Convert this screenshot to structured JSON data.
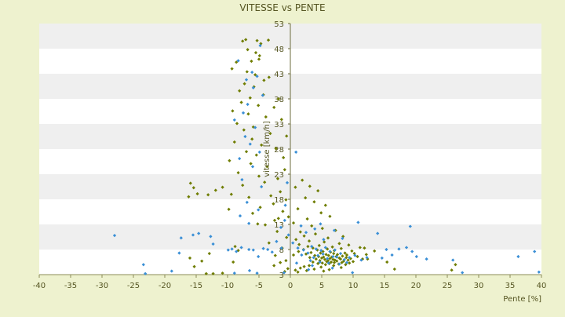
{
  "chart_data": {
    "type": "scatter",
    "title": "VITESSE vs PENTE",
    "xlabel": "Pente [%]",
    "ylabel": "vitesse [km/h]",
    "xlim": [
      -40,
      40
    ],
    "ylim": [
      3,
      53
    ],
    "x_ticks": [
      -40,
      -35,
      -30,
      -25,
      -20,
      -15,
      -10,
      -5,
      0,
      5,
      10,
      15,
      20,
      25,
      30,
      35,
      40
    ],
    "y_ticks": [
      3,
      8,
      13,
      18,
      23,
      28,
      33,
      38,
      43,
      48,
      53
    ],
    "grid": "horizontal bands",
    "colors": {
      "background": "#eef2cf",
      "plot_band_light": "#ffffff",
      "plot_band_dark": "#efefef",
      "text": "#555522",
      "series_a": "#6f7d00",
      "series_b": "#3a8fd6"
    },
    "series": [
      {
        "color": "#6f7d00",
        "points": [
          [
            -7.6,
            49.5
          ],
          [
            -7.1,
            49.8
          ],
          [
            -5.3,
            49.6
          ],
          [
            -4.7,
            49.0
          ],
          [
            -3.5,
            49.7
          ],
          [
            -6.8,
            47.8
          ],
          [
            -5.5,
            47.2
          ],
          [
            -4.9,
            46.6
          ],
          [
            -6.2,
            45.5
          ],
          [
            -5.0,
            45.9
          ],
          [
            -8.6,
            45.3
          ],
          [
            -9.3,
            44.0
          ],
          [
            -6.9,
            43.4
          ],
          [
            -5.6,
            42.8
          ],
          [
            -3.4,
            42.3
          ],
          [
            -4.2,
            41.7
          ],
          [
            -7.3,
            41.0
          ],
          [
            -5.8,
            40.4
          ],
          [
            -8.1,
            39.6
          ],
          [
            -4.3,
            38.8
          ],
          [
            -6.4,
            38.2
          ],
          [
            -1.9,
            38.0
          ],
          [
            -7.8,
            37.3
          ],
          [
            -5.1,
            36.7
          ],
          [
            -2.6,
            36.3
          ],
          [
            -9.2,
            35.6
          ],
          [
            -6.7,
            35.0
          ],
          [
            -3.9,
            34.4
          ],
          [
            -1.4,
            33.9
          ],
          [
            -8.5,
            33.1
          ],
          [
            -5.9,
            32.4
          ],
          [
            -7.4,
            31.8
          ],
          [
            -3.2,
            31.1
          ],
          [
            -0.6,
            30.6
          ],
          [
            -6.1,
            30.0
          ],
          [
            -8.9,
            29.4
          ],
          [
            -4.6,
            28.8
          ],
          [
            -2.3,
            28.1
          ],
          [
            -7.0,
            27.5
          ],
          [
            -5.4,
            26.8
          ],
          [
            -1.1,
            26.3
          ],
          [
            -9.7,
            25.7
          ],
          [
            -6.3,
            25.1
          ],
          [
            -3.7,
            24.5
          ],
          [
            -0.9,
            23.9
          ],
          [
            -8.3,
            23.3
          ],
          [
            -5.0,
            22.6
          ],
          [
            -2.0,
            22.1
          ],
          [
            -4.1,
            21.4
          ],
          [
            -7.6,
            20.8
          ],
          [
            -15.9,
            21.2
          ],
          [
            -15.4,
            20.3
          ],
          [
            -14.8,
            19.1
          ],
          [
            -13.1,
            18.9
          ],
          [
            -16.2,
            18.5
          ],
          [
            -11.9,
            19.8
          ],
          [
            -10.8,
            20.4
          ],
          [
            -9.4,
            19.0
          ],
          [
            -6.6,
            18.4
          ],
          [
            -3.1,
            18.7
          ],
          [
            -1.6,
            19.5
          ],
          [
            -0.7,
            17.9
          ],
          [
            -2.7,
            17.1
          ],
          [
            -4.8,
            16.4
          ],
          [
            -9.8,
            16.0
          ],
          [
            -6.0,
            15.2
          ],
          [
            -1.2,
            15.6
          ],
          [
            -0.3,
            14.5
          ],
          [
            -2.5,
            13.8
          ],
          [
            -5.2,
            13.1
          ],
          [
            0.8,
            20.4
          ],
          [
            1.9,
            21.8
          ],
          [
            3.1,
            20.6
          ],
          [
            4.4,
            19.7
          ],
          [
            2.4,
            18.3
          ],
          [
            3.8,
            17.5
          ],
          [
            5.6,
            16.8
          ],
          [
            1.2,
            16.1
          ],
          [
            4.9,
            15.3
          ],
          [
            6.3,
            14.6
          ],
          [
            2.7,
            14.1
          ],
          [
            0.5,
            13.3
          ],
          [
            3.4,
            12.7
          ],
          [
            5.1,
            12.2
          ],
          [
            7.2,
            11.8
          ],
          [
            1.6,
            11.5
          ],
          [
            4.0,
            11.1
          ],
          [
            2.2,
            10.7
          ],
          [
            6.0,
            10.3
          ],
          [
            8.4,
            10.6
          ],
          [
            0.9,
            10.0
          ],
          [
            3.0,
            9.7
          ],
          [
            5.4,
            9.5
          ],
          [
            7.8,
            9.2
          ],
          [
            1.4,
            9.0
          ],
          [
            4.6,
            8.8
          ],
          [
            9.3,
            8.9
          ],
          [
            2.8,
            8.6
          ],
          [
            6.7,
            8.5
          ],
          [
            11.1,
            8.4
          ],
          [
            3.6,
            8.3
          ],
          [
            5.9,
            8.1
          ],
          [
            8.1,
            8.2
          ],
          [
            2.1,
            8.0
          ],
          [
            4.3,
            7.9
          ],
          [
            7.0,
            7.8
          ],
          [
            9.8,
            7.7
          ],
          [
            1.3,
            7.6
          ],
          [
            5.2,
            7.6
          ],
          [
            6.4,
            7.5
          ],
          [
            3.3,
            7.4
          ],
          [
            8.7,
            7.3
          ],
          [
            4.8,
            7.3
          ],
          [
            6.9,
            7.2
          ],
          [
            10.2,
            7.2
          ],
          [
            2.5,
            7.1
          ],
          [
            5.7,
            7.0
          ],
          [
            7.5,
            7.0
          ],
          [
            9.0,
            6.9
          ],
          [
            12.1,
            7.0
          ],
          [
            3.9,
            6.8
          ],
          [
            6.1,
            6.8
          ],
          [
            8.3,
            6.7
          ],
          [
            4.5,
            6.6
          ],
          [
            7.3,
            6.6
          ],
          [
            10.7,
            6.6
          ],
          [
            5.3,
            6.5
          ],
          [
            6.6,
            6.5
          ],
          [
            8.9,
            6.4
          ],
          [
            3.1,
            6.4
          ],
          [
            7.8,
            6.3
          ],
          [
            5.0,
            6.3
          ],
          [
            9.6,
            6.2
          ],
          [
            6.3,
            6.2
          ],
          [
            4.1,
            6.1
          ],
          [
            8.0,
            6.1
          ],
          [
            11.5,
            6.1
          ],
          [
            6.8,
            6.0
          ],
          [
            5.5,
            6.0
          ],
          [
            7.1,
            5.9
          ],
          [
            9.2,
            5.9
          ],
          [
            4.7,
            5.8
          ],
          [
            6.0,
            5.8
          ],
          [
            8.5,
            5.7
          ],
          [
            7.4,
            5.7
          ],
          [
            5.8,
            5.6
          ],
          [
            10.0,
            5.6
          ],
          [
            6.5,
            5.5
          ],
          [
            3.6,
            5.5
          ],
          [
            8.2,
            5.4
          ],
          [
            7.0,
            5.4
          ],
          [
            5.1,
            5.3
          ],
          [
            9.4,
            5.3
          ],
          [
            6.2,
            5.2
          ],
          [
            4.4,
            5.2
          ],
          [
            7.7,
            5.1
          ],
          [
            8.8,
            5.0
          ],
          [
            5.6,
            5.0
          ],
          [
            3.0,
            4.8
          ],
          [
            6.9,
            4.8
          ],
          [
            2.2,
            4.6
          ],
          [
            4.9,
            4.5
          ],
          [
            8.1,
            4.4
          ],
          [
            1.6,
            4.3
          ],
          [
            3.8,
            4.1
          ],
          [
            6.2,
            4.0
          ],
          [
            0.8,
            3.9
          ],
          [
            2.6,
            3.8
          ],
          [
            5.3,
            3.7
          ],
          [
            1.2,
            3.5
          ],
          [
            -0.4,
            4.2
          ],
          [
            -0.9,
            3.6
          ],
          [
            -1.6,
            5.4
          ],
          [
            -2.4,
            6.8
          ],
          [
            -1.3,
            8.3
          ],
          [
            -0.6,
            10.4
          ],
          [
            -3.4,
            9.3
          ],
          [
            -2.1,
            11.6
          ],
          [
            -4.0,
            12.9
          ],
          [
            -1.9,
            14.2
          ],
          [
            -10.8,
            3.3
          ],
          [
            -12.3,
            3.2
          ],
          [
            -13.4,
            3.2
          ],
          [
            -9.1,
            5.5
          ],
          [
            -8.3,
            7.8
          ],
          [
            -15.3,
            4.6
          ],
          [
            -14.1,
            5.7
          ],
          [
            -12.9,
            7.2
          ],
          [
            -16.0,
            6.3
          ],
          [
            -8.8,
            8.6
          ],
          [
            16.6,
            4.1
          ],
          [
            15.4,
            5.5
          ],
          [
            12.3,
            6.1
          ],
          [
            13.4,
            7.7
          ],
          [
            11.8,
            8.3
          ],
          [
            25.7,
            3.9
          ],
          [
            26.3,
            5.0
          ],
          [
            -2.6,
            4.8
          ],
          [
            -0.7,
            5.8
          ],
          [
            0.5,
            6.9
          ]
        ]
      },
      {
        "color": "#3a8fd6",
        "points": [
          [
            -4.8,
            48.6
          ],
          [
            -8.3,
            45.6
          ],
          [
            -6.1,
            43.3
          ],
          [
            -5.3,
            42.5
          ],
          [
            -7.0,
            41.8
          ],
          [
            -5.9,
            40.2
          ],
          [
            -4.4,
            38.7
          ],
          [
            -6.8,
            36.9
          ],
          [
            -7.5,
            35.2
          ],
          [
            -8.9,
            33.8
          ],
          [
            -5.6,
            32.3
          ],
          [
            -7.2,
            30.5
          ],
          [
            -6.4,
            29.0
          ],
          [
            -4.9,
            27.4
          ],
          [
            -8.1,
            26.1
          ],
          [
            -6.0,
            24.5
          ],
          [
            -7.7,
            21.9
          ],
          [
            -4.6,
            20.5
          ],
          [
            -6.9,
            17.4
          ],
          [
            -5.1,
            15.9
          ],
          [
            -8.0,
            14.7
          ],
          [
            -6.6,
            13.2
          ],
          [
            0.9,
            27.4
          ],
          [
            -0.5,
            21.3
          ],
          [
            -0.8,
            16.8
          ],
          [
            -28.0,
            10.8
          ],
          [
            -23.4,
            5.0
          ],
          [
            -23.1,
            3.2
          ],
          [
            -18.9,
            3.7
          ],
          [
            -17.7,
            7.3
          ],
          [
            -17.4,
            10.3
          ],
          [
            -15.5,
            10.9
          ],
          [
            -14.6,
            11.2
          ],
          [
            -12.7,
            10.6
          ],
          [
            -12.3,
            9.1
          ],
          [
            -9.9,
            7.9
          ],
          [
            -9.3,
            8.1
          ],
          [
            -8.6,
            7.6
          ],
          [
            -7.8,
            8.4
          ],
          [
            -6.6,
            8.0
          ],
          [
            -5.9,
            7.9
          ],
          [
            -5.1,
            6.6
          ],
          [
            -4.3,
            8.2
          ],
          [
            -3.6,
            8.0
          ],
          [
            -2.9,
            7.5
          ],
          [
            -1.4,
            8.3
          ],
          [
            -8.9,
            3.3
          ],
          [
            -6.5,
            3.8
          ],
          [
            -5.3,
            3.3
          ],
          [
            -1.0,
            3.4
          ],
          [
            1.2,
            8.3
          ],
          [
            2.1,
            7.9
          ],
          [
            3.4,
            8.6
          ],
          [
            4.1,
            8.1
          ],
          [
            4.9,
            7.8
          ],
          [
            5.6,
            8.4
          ],
          [
            6.3,
            7.6
          ],
          [
            7.1,
            7.9
          ],
          [
            8.0,
            7.2
          ],
          [
            5.2,
            7.1
          ],
          [
            4.4,
            6.8
          ],
          [
            6.8,
            6.6
          ],
          [
            3.7,
            6.4
          ],
          [
            5.9,
            6.2
          ],
          [
            7.4,
            6.5
          ],
          [
            2.8,
            7.3
          ],
          [
            1.8,
            6.9
          ],
          [
            8.6,
            6.0
          ],
          [
            9.4,
            6.4
          ],
          [
            10.3,
            6.8
          ],
          [
            4.7,
            5.5
          ],
          [
            6.1,
            5.3
          ],
          [
            3.2,
            5.8
          ],
          [
            7.8,
            5.1
          ],
          [
            9.0,
            5.4
          ],
          [
            11.3,
            5.9
          ],
          [
            12.2,
            6.4
          ],
          [
            14.6,
            6.3
          ],
          [
            15.3,
            8.0
          ],
          [
            13.9,
            11.2
          ],
          [
            10.8,
            13.4
          ],
          [
            8.3,
            10.2
          ],
          [
            7.0,
            11.8
          ],
          [
            5.3,
            10.0
          ],
          [
            3.9,
            12.1
          ],
          [
            2.5,
            11.4
          ],
          [
            1.7,
            12.7
          ],
          [
            4.8,
            13.1
          ],
          [
            19.1,
            12.6
          ],
          [
            18.5,
            8.4
          ],
          [
            19.4,
            7.6
          ],
          [
            20.1,
            6.6
          ],
          [
            21.7,
            6.1
          ],
          [
            25.9,
            5.9
          ],
          [
            27.4,
            3.4
          ],
          [
            36.3,
            6.6
          ],
          [
            38.9,
            7.6
          ],
          [
            39.6,
            3.5
          ],
          [
            17.3,
            8.1
          ],
          [
            16.2,
            6.9
          ],
          [
            9.9,
            3.4
          ],
          [
            6.7,
            4.3
          ],
          [
            3.5,
            4.8
          ],
          [
            2.9,
            4.0
          ],
          [
            1.0,
            5.3
          ],
          [
            0.4,
            9.3
          ],
          [
            -0.3,
            10.9
          ],
          [
            -2.2,
            9.6
          ],
          [
            -1.5,
            12.4
          ],
          [
            -0.9,
            13.8
          ]
        ]
      }
    ]
  }
}
